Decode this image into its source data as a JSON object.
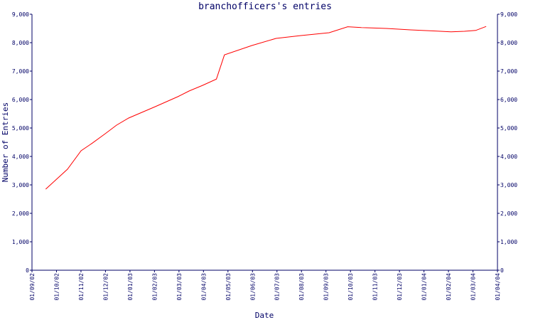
{
  "chart_data": {
    "type": "line",
    "title": "branchofficers's entries",
    "xlabel": "Date",
    "ylabel": "Number of Entries",
    "ylim": [
      0,
      9000
    ],
    "y_ticks": [
      0,
      1000,
      2000,
      3000,
      4000,
      5000,
      6000,
      7000,
      8000,
      9000
    ],
    "y_tick_labels": [
      "0",
      "1,000",
      "2,000",
      "3,000",
      "4,000",
      "5,000",
      "6,000",
      "7,000",
      "8,000",
      "9,000"
    ],
    "x_ticks": [
      "01/09/02",
      "01/10/02",
      "01/11/02",
      "01/12/02",
      "01/01/03",
      "01/02/03",
      "01/03/03",
      "01/04/03",
      "01/05/03",
      "01/06/03",
      "01/07/03",
      "01/08/03",
      "01/09/03",
      "01/10/03",
      "01/11/03",
      "01/12/03",
      "01/01/04",
      "01/02/04",
      "01/03/04",
      "01/04/04"
    ],
    "xlim": [
      "2002-09-01",
      "2004-04-01"
    ],
    "grid": false,
    "series": [
      {
        "color": "#ff0000",
        "points": [
          {
            "x": "2002-09-18",
            "y": 2850
          },
          {
            "x": "2002-10-15",
            "y": 3550
          },
          {
            "x": "2002-11-01",
            "y": 4200
          },
          {
            "x": "2002-11-15",
            "y": 4470
          },
          {
            "x": "2002-12-01",
            "y": 4800
          },
          {
            "x": "2002-12-15",
            "y": 5100
          },
          {
            "x": "2002-12-30",
            "y": 5350
          },
          {
            "x": "2003-02-01",
            "y": 5750
          },
          {
            "x": "2003-03-01",
            "y": 6100
          },
          {
            "x": "2003-03-15",
            "y": 6300
          },
          {
            "x": "2003-04-01",
            "y": 6500
          },
          {
            "x": "2003-04-18",
            "y": 6720
          },
          {
            "x": "2003-04-28",
            "y": 7570
          },
          {
            "x": "2003-06-01",
            "y": 7900
          },
          {
            "x": "2003-07-01",
            "y": 8150
          },
          {
            "x": "2003-08-01",
            "y": 8250
          },
          {
            "x": "2003-09-05",
            "y": 8350
          },
          {
            "x": "2003-09-28",
            "y": 8560
          },
          {
            "x": "2003-10-15",
            "y": 8530
          },
          {
            "x": "2003-11-15",
            "y": 8500
          },
          {
            "x": "2003-12-15",
            "y": 8450
          },
          {
            "x": "2004-01-15",
            "y": 8410
          },
          {
            "x": "2004-02-03",
            "y": 8380
          },
          {
            "x": "2004-02-20",
            "y": 8400
          },
          {
            "x": "2004-03-05",
            "y": 8430
          },
          {
            "x": "2004-03-18",
            "y": 8570
          }
        ]
      }
    ]
  }
}
